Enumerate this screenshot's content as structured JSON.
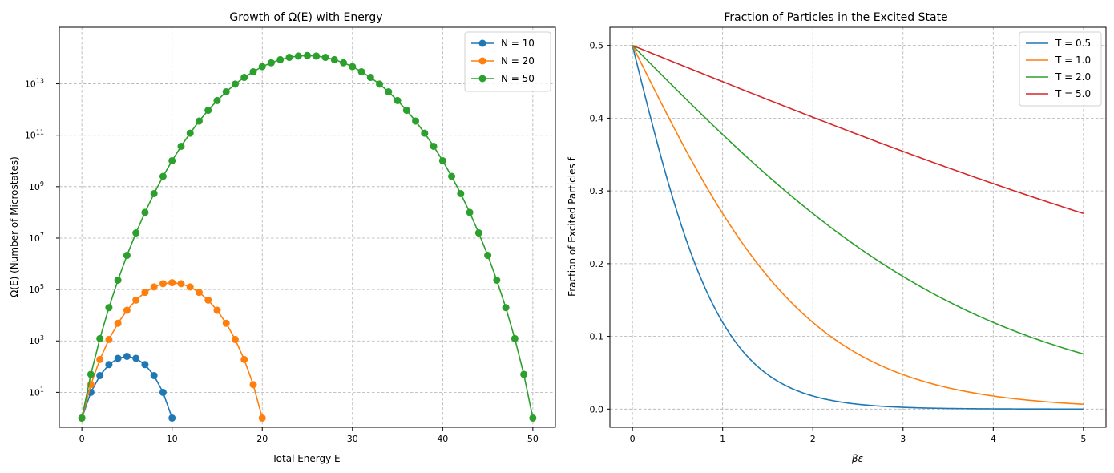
{
  "chart_data": [
    {
      "type": "line",
      "title": "Growth of Ω(E) with Energy",
      "xlabel": "Total Energy E",
      "ylabel": "Ω(E) (Number of Microstates)",
      "yscale": "log",
      "xlim": [
        -2.5,
        52.5
      ],
      "ylim_log10": [
        -0.36,
        15.2
      ],
      "xticks": [
        0,
        10,
        20,
        30,
        40,
        50
      ],
      "ytick_exponents": [
        1,
        3,
        5,
        7,
        9,
        11,
        13
      ],
      "legend_position": "top-right",
      "grid": true,
      "markers": true,
      "series": [
        {
          "name": "N = 10",
          "color": "#1f77b4",
          "x": [
            0,
            1,
            2,
            3,
            4,
            5,
            6,
            7,
            8,
            9,
            10
          ],
          "log10_values": [
            0,
            1,
            1.653,
            2.079,
            2.322,
            2.401,
            2.322,
            2.079,
            1.653,
            1,
            0
          ]
        },
        {
          "name": "N = 20",
          "color": "#ff7f0e",
          "x": [
            0,
            1,
            2,
            3,
            4,
            5,
            6,
            7,
            8,
            9,
            10,
            11,
            12,
            13,
            14,
            15,
            16,
            17,
            18,
            19,
            20
          ],
          "log10_values": [
            0,
            1.301,
            2.279,
            3.057,
            3.685,
            4.192,
            4.587,
            4.89,
            5.1,
            5.226,
            5.266,
            5.226,
            5.1,
            4.89,
            4.587,
            4.192,
            3.685,
            3.057,
            2.279,
            1.301,
            0
          ]
        },
        {
          "name": "N = 50",
          "color": "#2ca02c",
          "x": [
            0,
            1,
            2,
            3,
            4,
            5,
            6,
            7,
            8,
            9,
            10,
            11,
            12,
            13,
            14,
            15,
            16,
            17,
            18,
            19,
            20,
            21,
            22,
            23,
            24,
            25,
            26,
            27,
            28,
            29,
            30,
            31,
            32,
            33,
            34,
            35,
            36,
            37,
            38,
            39,
            40,
            41,
            42,
            43,
            44,
            45,
            46,
            47,
            48,
            49,
            50
          ],
          "log10_values": [
            0,
            1.699,
            3.09,
            4.294,
            5.362,
            6.327,
            7.2,
            8.0,
            8.73,
            9.4,
            10.01,
            10.57,
            11.08,
            11.55,
            11.97,
            12.35,
            12.69,
            12.99,
            13.25,
            13.47,
            13.67,
            13.82,
            13.94,
            14.03,
            14.08,
            14.1,
            14.08,
            14.03,
            13.94,
            13.82,
            13.67,
            13.47,
            13.25,
            12.99,
            12.69,
            12.35,
            11.97,
            11.55,
            11.08,
            10.57,
            10.01,
            9.4,
            8.73,
            8.0,
            7.2,
            6.327,
            5.362,
            4.294,
            3.09,
            1.699,
            0
          ]
        }
      ]
    },
    {
      "type": "line",
      "title": "Fraction of Particles in the Excited State",
      "xlabel": "βε",
      "ylabel": "Fraction of Excited Particles f",
      "xlim": [
        -0.25,
        5.25
      ],
      "ylim": [
        -0.025,
        0.525
      ],
      "xticks": [
        0,
        1,
        2,
        3,
        4,
        5
      ],
      "yticks": [
        0.0,
        0.1,
        0.2,
        0.3,
        0.4,
        0.5
      ],
      "ytick_labels": [
        "0.0",
        "0.1",
        "0.2",
        "0.3",
        "0.4",
        "0.5"
      ],
      "legend_position": "top-right",
      "grid": true,
      "markers": false,
      "formula": "f = 1 / (1 + exp(x / T))",
      "x_range": [
        0,
        5
      ],
      "series": [
        {
          "name": "T = 0.5",
          "color": "#1f77b4",
          "T": 0.5
        },
        {
          "name": "T = 1.0",
          "color": "#ff7f0e",
          "T": 1.0
        },
        {
          "name": "T = 2.0",
          "color": "#2ca02c",
          "T": 2.0
        },
        {
          "name": "T = 5.0",
          "color": "#d62728",
          "T": 5.0
        }
      ]
    }
  ]
}
